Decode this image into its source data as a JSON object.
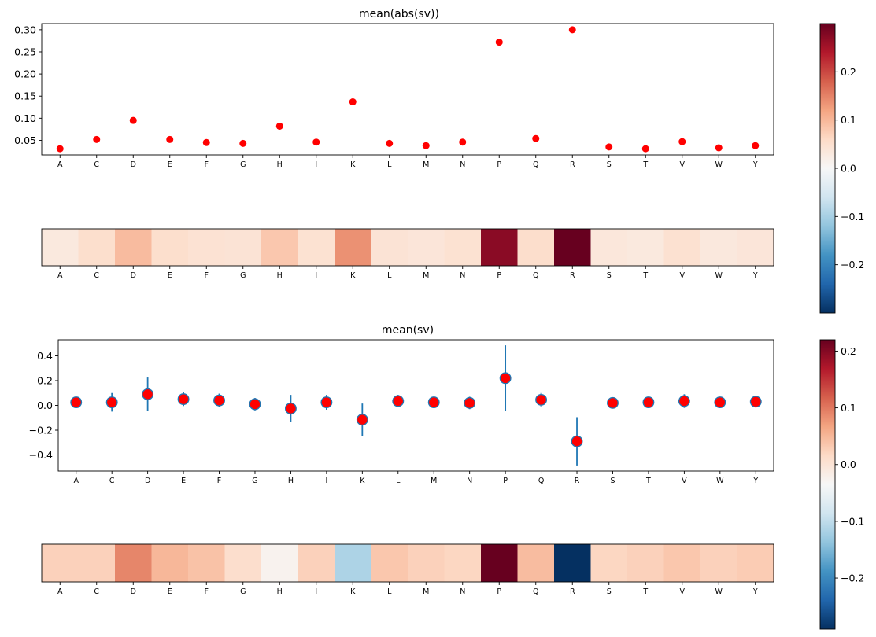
{
  "chart_data": [
    {
      "type": "scatter",
      "title": "mean(abs(sv))",
      "categories": [
        "A",
        "C",
        "D",
        "E",
        "F",
        "G",
        "H",
        "I",
        "K",
        "L",
        "M",
        "N",
        "P",
        "Q",
        "R",
        "S",
        "T",
        "V",
        "W",
        "Y"
      ],
      "values": [
        0.031,
        0.052,
        0.095,
        0.052,
        0.045,
        0.043,
        0.082,
        0.046,
        0.137,
        0.043,
        0.038,
        0.046,
        0.272,
        0.054,
        0.3,
        0.035,
        0.031,
        0.047,
        0.033,
        0.038
      ],
      "ylim": [
        0.017,
        0.314
      ],
      "yticks": [
        "0.05",
        "0.10",
        "0.15",
        "0.20",
        "0.25",
        "0.30"
      ],
      "marker_color": "#ff0000"
    },
    {
      "type": "heatmap",
      "categories": [
        "A",
        "C",
        "D",
        "E",
        "F",
        "G",
        "H",
        "I",
        "K",
        "L",
        "M",
        "N",
        "P",
        "Q",
        "R",
        "S",
        "T",
        "V",
        "W",
        "Y"
      ],
      "values": [
        0.031,
        0.052,
        0.095,
        0.052,
        0.045,
        0.043,
        0.082,
        0.046,
        0.137,
        0.043,
        0.038,
        0.046,
        0.272,
        0.054,
        0.3,
        0.035,
        0.031,
        0.047,
        0.033,
        0.038
      ],
      "colormap": "RdBu_r",
      "colorbar": {
        "vmin": -0.3,
        "vmax": 0.3,
        "ticks": [
          "0.2",
          "0.1",
          "0.0",
          "−0.1",
          "−0.2"
        ]
      }
    },
    {
      "type": "scatter",
      "title": "mean(sv)",
      "categories": [
        "A",
        "C",
        "D",
        "E",
        "F",
        "G",
        "H",
        "I",
        "K",
        "L",
        "M",
        "N",
        "P",
        "Q",
        "R",
        "S",
        "T",
        "V",
        "W",
        "Y"
      ],
      "values": [
        0.025,
        0.025,
        0.09,
        0.05,
        0.04,
        0.01,
        -0.025,
        0.025,
        -0.115,
        0.035,
        0.025,
        0.02,
        0.22,
        0.045,
        -0.29,
        0.02,
        0.025,
        0.035,
        0.025,
        0.03
      ],
      "error": [
        0.0,
        0.075,
        0.135,
        0.055,
        0.055,
        0.05,
        0.11,
        0.06,
        0.13,
        0.05,
        0.04,
        0.05,
        0.265,
        0.055,
        0.195,
        0.0,
        0.0,
        0.055,
        0.0,
        0.0
      ],
      "ylim": [
        -0.53,
        0.53
      ],
      "yticks": [
        "0.4",
        "0.2",
        "0.0",
        "−0.2",
        "−0.4"
      ],
      "marker_color": "#ff0000",
      "errorbar_color": "#1f77b4"
    },
    {
      "type": "heatmap",
      "categories": [
        "A",
        "C",
        "D",
        "E",
        "F",
        "G",
        "H",
        "I",
        "K",
        "L",
        "M",
        "N",
        "P",
        "Q",
        "R",
        "S",
        "T",
        "V",
        "W",
        "Y"
      ],
      "values": [
        0.025,
        0.025,
        0.09,
        0.05,
        0.04,
        0.01,
        -0.025,
        0.025,
        -0.115,
        0.035,
        0.025,
        0.02,
        0.22,
        0.045,
        -0.29,
        0.02,
        0.025,
        0.035,
        0.025,
        0.03
      ],
      "colormap": "RdBu_r",
      "colorbar": {
        "vmin": -0.29,
        "vmax": 0.22,
        "ticks": [
          "0.2",
          "0.1",
          "0.0",
          "−0.1",
          "−0.2"
        ]
      }
    }
  ]
}
